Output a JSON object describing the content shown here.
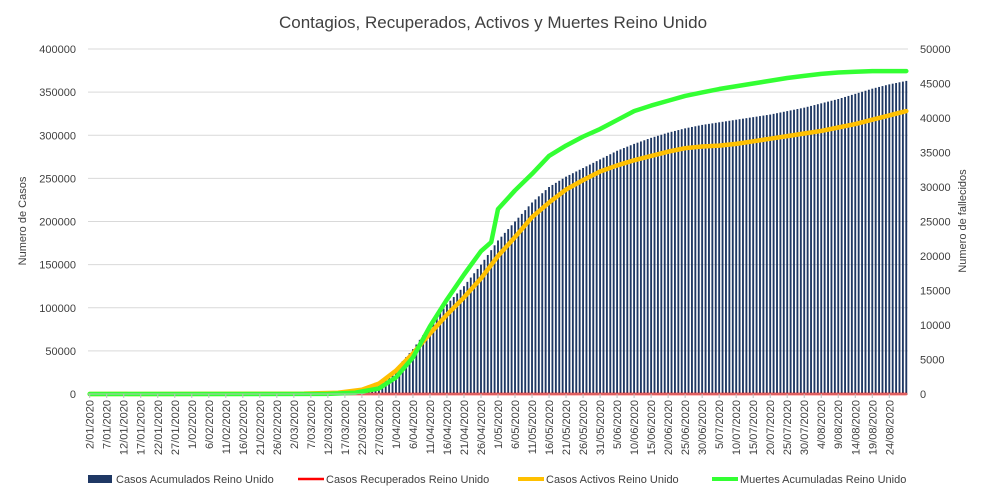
{
  "chart_data": {
    "type": "bar+line",
    "title": "Contagios, Recuperados, Activos y Muertes Reino Unido",
    "ylabel": "Numero de Casos",
    "y2label": "Numero de fallecidos",
    "ylim": [
      0,
      400000
    ],
    "y2lim": [
      0,
      50000
    ],
    "yticks": [
      "0",
      "50000",
      "100000",
      "150000",
      "200000",
      "250000",
      "300000",
      "350000",
      "400000"
    ],
    "y2ticks": [
      "0",
      "5000",
      "10000",
      "15000",
      "20000",
      "25000",
      "30000",
      "35000",
      "40000",
      "45000",
      "50000"
    ],
    "grid": true,
    "legend_position": "bottom",
    "x_start": "2020-01-02",
    "x_end": "2020-08-29",
    "x_tick_labels": [
      "2/01/2020",
      "7/01/2020",
      "12/01/2020",
      "17/01/2020",
      "22/01/2020",
      "27/01/2020",
      "1/02/2020",
      "6/02/2020",
      "11/02/2020",
      "16/02/2020",
      "21/02/2020",
      "26/02/2020",
      "2/03/2020",
      "7/03/2020",
      "12/03/2020",
      "17/03/2020",
      "22/03/2020",
      "27/03/2020",
      "1/04/2020",
      "6/04/2020",
      "11/04/2020",
      "16/04/2020",
      "21/04/2020",
      "26/04/2020",
      "1/05/2020",
      "6/05/2020",
      "11/05/2020",
      "16/05/2020",
      "21/05/2020",
      "26/05/2020",
      "31/05/2020",
      "5/06/2020",
      "10/06/2020",
      "15/06/2020",
      "20/06/2020",
      "25/06/2020",
      "30/06/2020",
      "5/07/2020",
      "10/07/2020",
      "15/07/2020",
      "20/07/2020",
      "25/07/2020",
      "30/07/2020",
      "4/08/2020",
      "9/08/2020",
      "14/08/2020",
      "19/08/2020",
      "24/08/2020"
    ],
    "series": [
      {
        "name": "Casos Acumulados Reino Unido",
        "kind": "bar",
        "axis": "left",
        "color": "#1f3864",
        "points": [
          [
            "2020-01-02",
            0
          ],
          [
            "2020-02-29",
            0
          ],
          [
            "2020-03-12",
            600
          ],
          [
            "2020-03-20",
            4000
          ],
          [
            "2020-03-27",
            14500
          ],
          [
            "2020-04-01",
            29000
          ],
          [
            "2020-04-06",
            52000
          ],
          [
            "2020-04-11",
            79000
          ],
          [
            "2020-04-16",
            104000
          ],
          [
            "2020-04-21",
            125000
          ],
          [
            "2020-04-26",
            150000
          ],
          [
            "2020-05-01",
            178000
          ],
          [
            "2020-05-06",
            200000
          ],
          [
            "2020-05-11",
            222000
          ],
          [
            "2020-05-16",
            240000
          ],
          [
            "2020-05-21",
            252000
          ],
          [
            "2020-05-26",
            262000
          ],
          [
            "2020-05-31",
            272000
          ],
          [
            "2020-06-05",
            282000
          ],
          [
            "2020-06-10",
            290000
          ],
          [
            "2020-06-15",
            297000
          ],
          [
            "2020-06-20",
            303000
          ],
          [
            "2020-06-25",
            308000
          ],
          [
            "2020-06-30",
            312000
          ],
          [
            "2020-07-05",
            315000
          ],
          [
            "2020-07-10",
            318000
          ],
          [
            "2020-07-15",
            321000
          ],
          [
            "2020-07-20",
            324000
          ],
          [
            "2020-07-25",
            328000
          ],
          [
            "2020-07-30",
            332000
          ],
          [
            "2020-08-04",
            337000
          ],
          [
            "2020-08-09",
            342000
          ],
          [
            "2020-08-14",
            348000
          ],
          [
            "2020-08-19",
            354000
          ],
          [
            "2020-08-24",
            359000
          ],
          [
            "2020-08-29",
            363000
          ]
        ]
      },
      {
        "name": "Casos Recuperados Reino Unido",
        "kind": "line",
        "axis": "left",
        "color": "#ff0000",
        "points": [
          [
            "2020-01-02",
            0
          ],
          [
            "2020-08-29",
            0
          ]
        ]
      },
      {
        "name": "Casos Activos Reino Unido",
        "kind": "line",
        "axis": "left",
        "color": "#ffc000",
        "points": [
          [
            "2020-01-02",
            0
          ],
          [
            "2020-03-05",
            400
          ],
          [
            "2020-03-15",
            1500
          ],
          [
            "2020-03-22",
            5000
          ],
          [
            "2020-03-27",
            12000
          ],
          [
            "2020-04-01",
            27000
          ],
          [
            "2020-04-06",
            47000
          ],
          [
            "2020-04-11",
            70000
          ],
          [
            "2020-04-16",
            92000
          ],
          [
            "2020-04-21",
            112000
          ],
          [
            "2020-04-26",
            134000
          ],
          [
            "2020-05-01",
            160000
          ],
          [
            "2020-05-06",
            182000
          ],
          [
            "2020-05-11",
            205000
          ],
          [
            "2020-05-16",
            222000
          ],
          [
            "2020-05-21",
            237000
          ],
          [
            "2020-05-26",
            248000
          ],
          [
            "2020-05-31",
            258000
          ],
          [
            "2020-06-05",
            265000
          ],
          [
            "2020-06-10",
            271000
          ],
          [
            "2020-06-15",
            276000
          ],
          [
            "2020-06-20",
            281000
          ],
          [
            "2020-06-25",
            285000
          ],
          [
            "2020-06-30",
            287000
          ],
          [
            "2020-07-05",
            288000
          ],
          [
            "2020-07-10",
            290000
          ],
          [
            "2020-07-15",
            293000
          ],
          [
            "2020-07-20",
            296000
          ],
          [
            "2020-07-25",
            299000
          ],
          [
            "2020-07-30",
            302000
          ],
          [
            "2020-08-04",
            305000
          ],
          [
            "2020-08-09",
            309000
          ],
          [
            "2020-08-14",
            313000
          ],
          [
            "2020-08-19",
            318000
          ],
          [
            "2020-08-24",
            323000
          ],
          [
            "2020-08-29",
            328000
          ]
        ]
      },
      {
        "name": "Muertes Acumuladas Reino Unido",
        "kind": "line",
        "axis": "right",
        "color": "#33ff33",
        "points": [
          [
            "2020-01-02",
            0
          ],
          [
            "2020-03-12",
            10
          ],
          [
            "2020-03-20",
            180
          ],
          [
            "2020-03-27",
            800
          ],
          [
            "2020-04-01",
            2400
          ],
          [
            "2020-04-06",
            5300
          ],
          [
            "2020-04-11",
            9800
          ],
          [
            "2020-04-16",
            13700
          ],
          [
            "2020-04-21",
            17300
          ],
          [
            "2020-04-26",
            20700
          ],
          [
            "2020-04-29",
            22000
          ],
          [
            "2020-05-01",
            26800
          ],
          [
            "2020-05-06",
            29500
          ],
          [
            "2020-05-11",
            31900
          ],
          [
            "2020-05-16",
            34500
          ],
          [
            "2020-05-21",
            36000
          ],
          [
            "2020-05-26",
            37300
          ],
          [
            "2020-05-31",
            38400
          ],
          [
            "2020-06-05",
            39700
          ],
          [
            "2020-06-10",
            41000
          ],
          [
            "2020-06-15",
            41800
          ],
          [
            "2020-06-20",
            42500
          ],
          [
            "2020-06-25",
            43200
          ],
          [
            "2020-06-30",
            43700
          ],
          [
            "2020-07-05",
            44200
          ],
          [
            "2020-07-10",
            44600
          ],
          [
            "2020-07-15",
            45000
          ],
          [
            "2020-07-20",
            45400
          ],
          [
            "2020-07-25",
            45800
          ],
          [
            "2020-07-30",
            46100
          ],
          [
            "2020-08-04",
            46400
          ],
          [
            "2020-08-09",
            46600
          ],
          [
            "2020-08-14",
            46700
          ],
          [
            "2020-08-19",
            46800
          ],
          [
            "2020-08-24",
            46800
          ],
          [
            "2020-08-29",
            46800
          ]
        ]
      }
    ]
  }
}
